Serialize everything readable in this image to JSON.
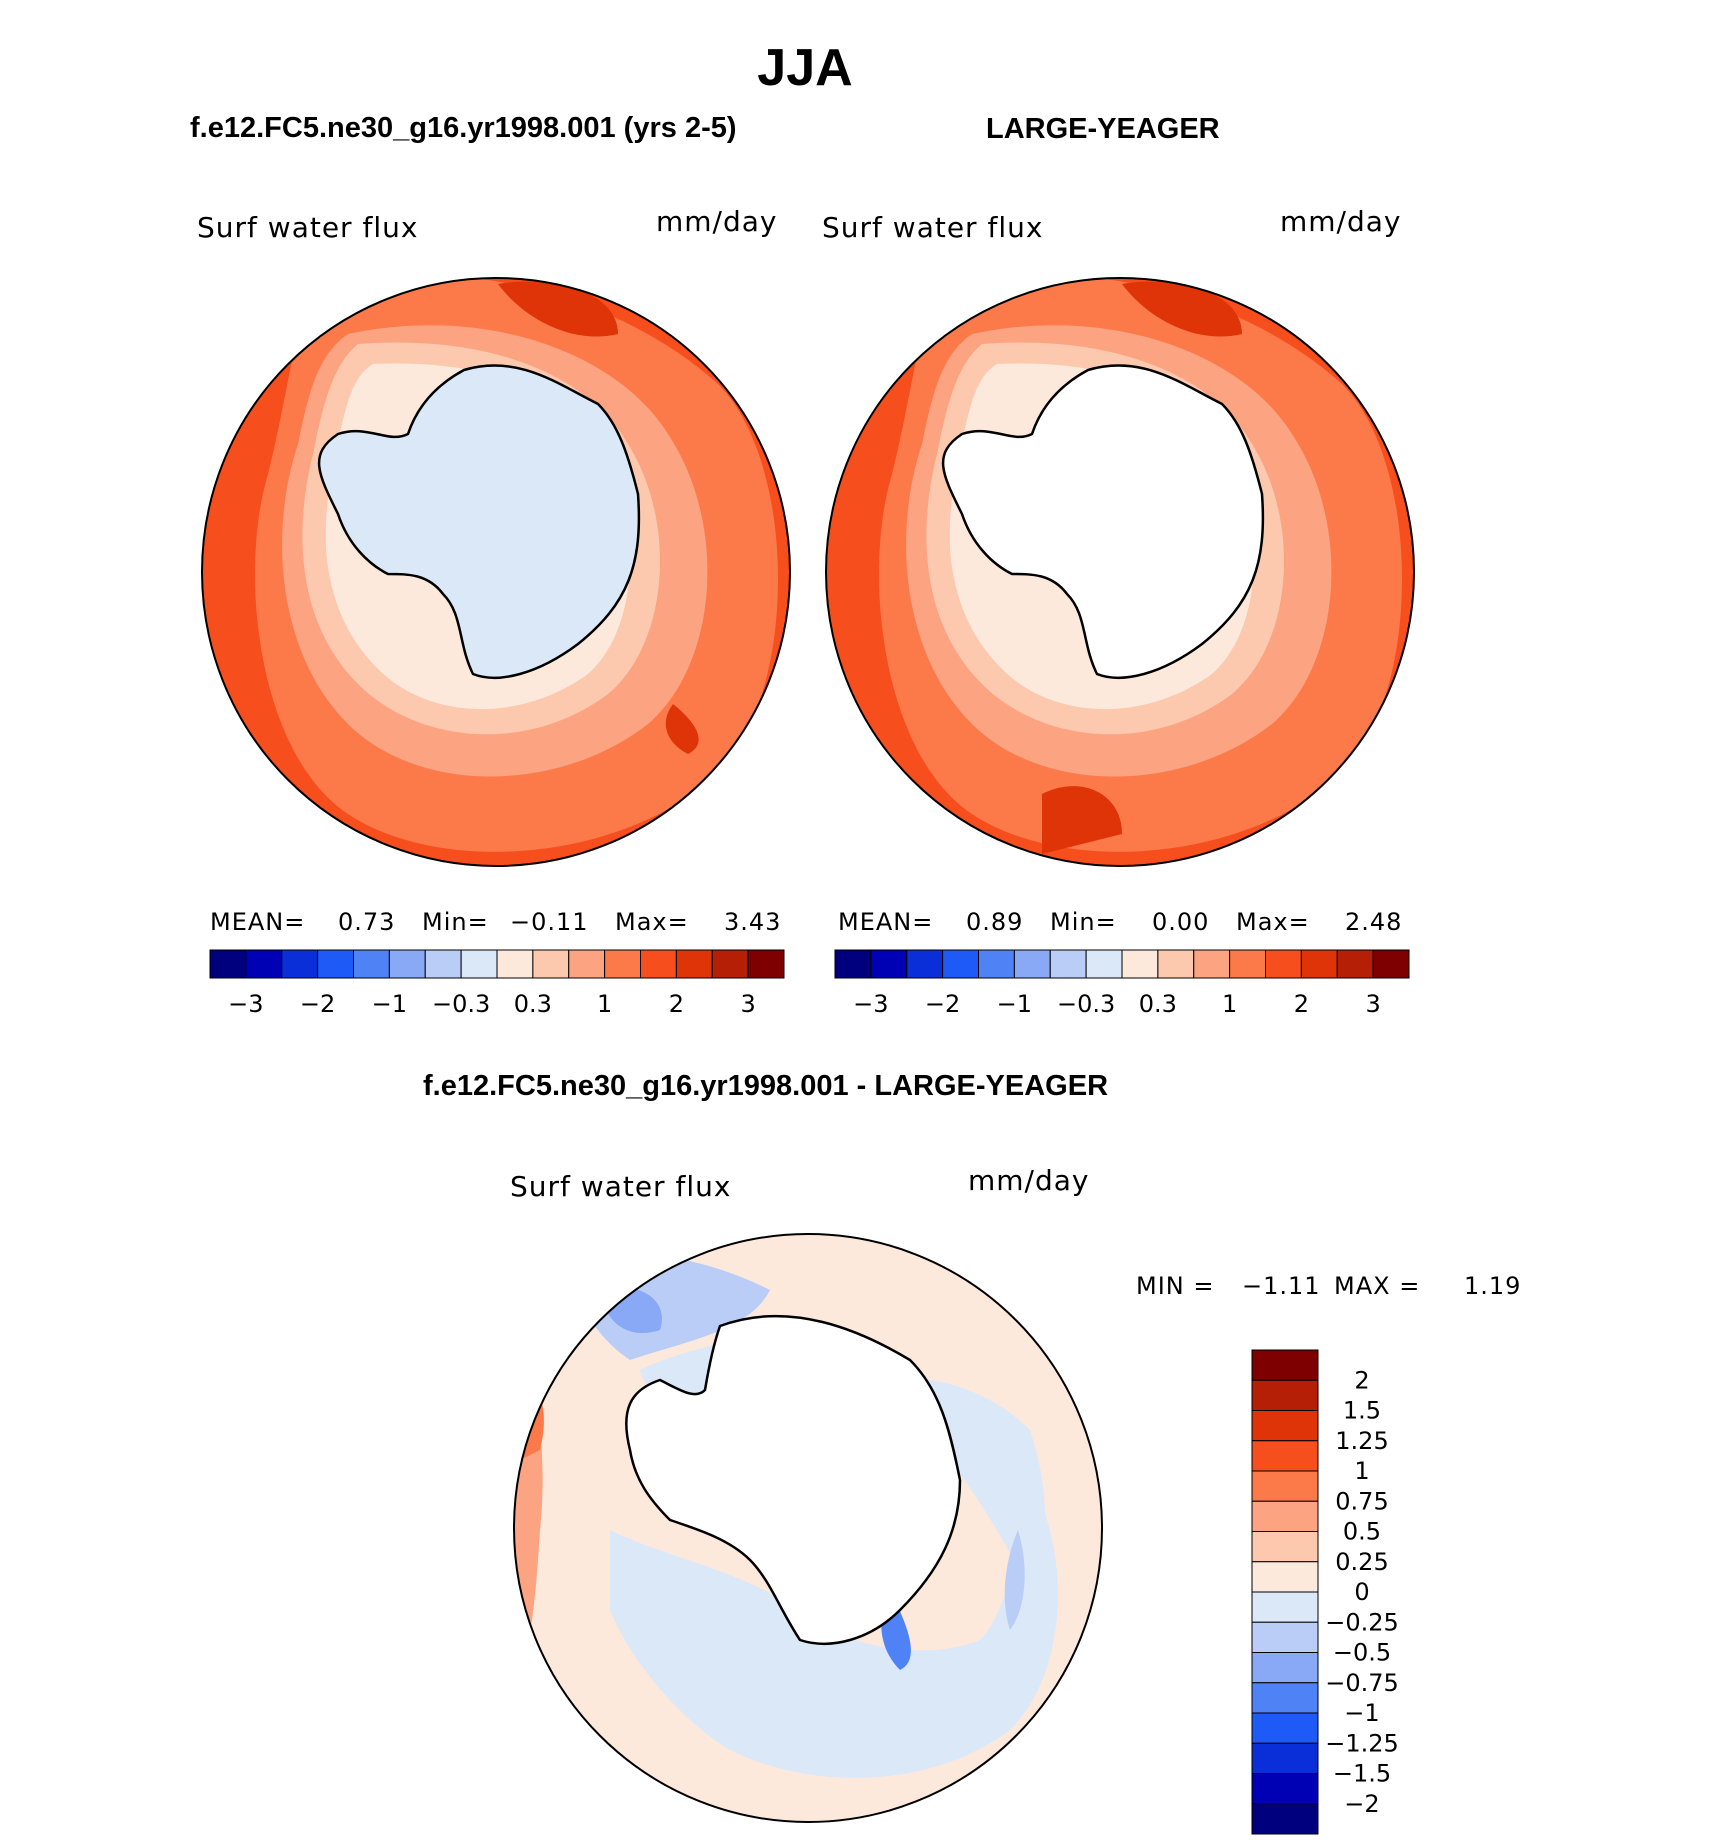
{
  "figure_title": "JJA",
  "panels": [
    {
      "header": "f.e12.FC5.ne30_g16.yr1998.001 (yrs 2-5)",
      "variable": "Surf water flux",
      "units": "mm/day",
      "stats": {
        "mean_label": "MEAN=",
        "mean": "0.73",
        "min_label": "Min=",
        "min": "−0.11",
        "max_label": "Max=",
        "max": "3.43"
      }
    },
    {
      "header": "LARGE-YEAGER",
      "variable": "Surf water flux",
      "units": "mm/day",
      "stats": {
        "mean_label": "MEAN=",
        "mean": "0.89",
        "min_label": "Min=",
        "min": "0.00",
        "max_label": "Max=",
        "max": "2.48"
      }
    }
  ],
  "abs_colorbar": {
    "colors": [
      "#00007f",
      "#0000b5",
      "#0a2fd8",
      "#1e5af5",
      "#4f82f5",
      "#89a8f5",
      "#b9cdf7",
      "#dae8f8",
      "#fde9dc",
      "#fcc9ae",
      "#fca382",
      "#fc7a4a",
      "#f74e1e",
      "#df3308",
      "#b51f05",
      "#7f0000"
    ],
    "labels": [
      "−3",
      "−2",
      "−1",
      "−0.3",
      "0.3",
      "1",
      "2",
      "3"
    ]
  },
  "diff_panel": {
    "header": "f.e12.FC5.ne30_g16.yr1998.001 - LARGE-YEAGER",
    "variable": "Surf water flux",
    "units": "mm/day",
    "stats": {
      "min_label": "MIN =",
      "min": "−1.11",
      "max_label": "MAX =",
      "max": "1.19"
    },
    "colorbar": {
      "colors": [
        "#7f0000",
        "#b51f05",
        "#df3308",
        "#f74e1e",
        "#fc7a4a",
        "#fca382",
        "#fcc9ae",
        "#fde9dc",
        "#dae8f8",
        "#b9cdf7",
        "#89a8f5",
        "#4f82f5",
        "#1e5af5",
        "#0a2fd8",
        "#0000b5",
        "#00007f"
      ],
      "labels": [
        "2",
        "1.5",
        "1.25",
        "1",
        "0.75",
        "0.5",
        "0.25",
        "0",
        "−0.25",
        "−0.5",
        "−0.75",
        "−1",
        "−1.25",
        "−1.5",
        "−2"
      ]
    }
  }
}
